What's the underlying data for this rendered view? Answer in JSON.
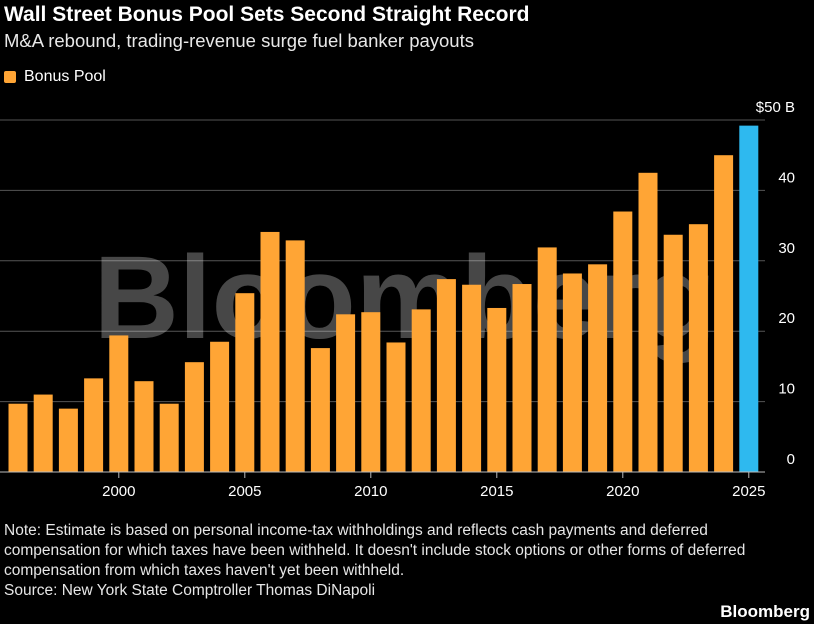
{
  "title": "Wall Street Bonus Pool Sets Second Straight Record",
  "subtitle": "M&A rebound, trading-revenue surge fuel banker payouts",
  "note": "Note: Estimate is based on personal income-tax withholdings and reflects cash payments and deferred compensation for which taxes have been withheld. It doesn't include stock options or other forms of deferred compensation from which taxes haven't yet been withheld.",
  "source": "Source: New York State Comptroller Thomas DiNapoli",
  "brand": "Bloomberg",
  "watermark": "Bloomberg",
  "colors": {
    "bar": "#ffa535",
    "highlight": "#2eb9ef",
    "grid": "#555555",
    "background": "#000000"
  },
  "chart_data": {
    "type": "bar",
    "legend": "Bonus Pool",
    "legend_position": "top-left",
    "x": [
      1996,
      1997,
      1998,
      1999,
      2000,
      2001,
      2002,
      2003,
      2004,
      2005,
      2006,
      2007,
      2008,
      2009,
      2010,
      2011,
      2012,
      2013,
      2014,
      2015,
      2016,
      2017,
      2018,
      2019,
      2020,
      2021,
      2022,
      2023,
      2024,
      2025
    ],
    "values": [
      9.7,
      11.0,
      9.0,
      13.3,
      19.4,
      12.9,
      9.7,
      15.6,
      18.5,
      25.4,
      34.1,
      32.9,
      17.6,
      22.4,
      22.7,
      18.4,
      23.1,
      27.4,
      26.6,
      23.3,
      26.7,
      31.9,
      28.2,
      29.5,
      37.0,
      42.5,
      33.7,
      35.2,
      45.0,
      49.2
    ],
    "highlight_x": [
      2025
    ],
    "x_ticks": [
      "2000",
      "2005",
      "2010",
      "2015",
      "2020",
      "2025"
    ],
    "y_ticks": [
      "$50 B",
      "40",
      "30",
      "20",
      "10",
      "0"
    ],
    "ylim": [
      0,
      50
    ],
    "grid": true,
    "axis_side": "right"
  }
}
